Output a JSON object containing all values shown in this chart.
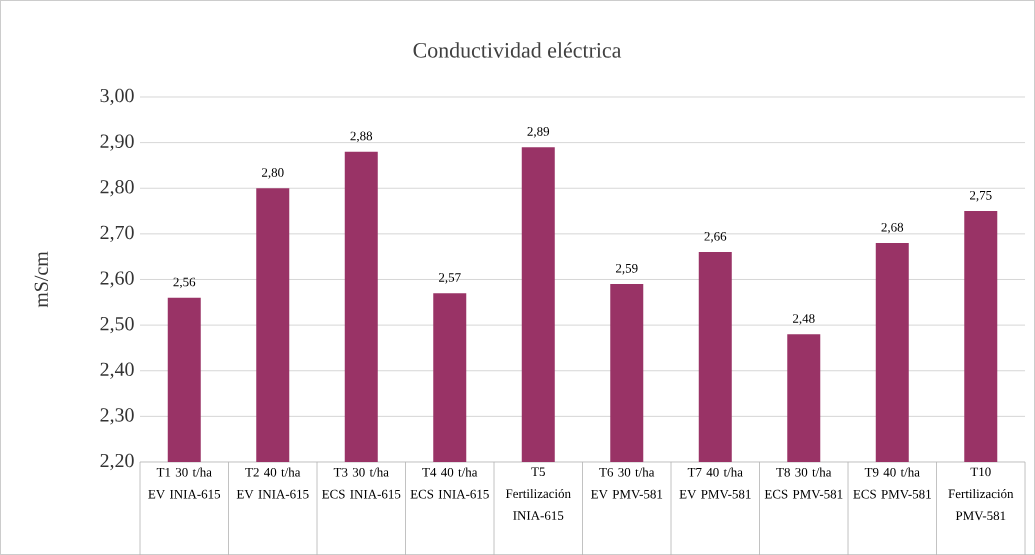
{
  "chart_data": {
    "type": "bar",
    "title": "Conductividad eléctrica",
    "ylabel": "mS/cm",
    "categories": [
      "T1 30 t/ha EV INIA-615",
      "T2 40 t/ha EV INIA-615",
      "T3 30 t/ha ECS INIA-615",
      "T4 40 t/ha ECS INIA-615",
      "T5 Fertilización INIA-615",
      "T6 30 t/ha EV PMV-581",
      "T7 40 t/ha EV PMV-581",
      "T8 30 t/ha ECS PMV-581",
      "T9 40 t/ha ECS PMV-581",
      "T10 Fertilización PMV-581"
    ],
    "values": [
      2.56,
      2.8,
      2.88,
      2.57,
      2.89,
      2.59,
      2.66,
      2.48,
      2.68,
      2.75
    ],
    "value_labels": [
      "2,56",
      "2,80",
      "2,88",
      "2,57",
      "2,89",
      "2,59",
      "2,66",
      "2,48",
      "2,68",
      "2,75"
    ],
    "color": "#993366",
    "ylim": [
      2.2,
      3.0
    ],
    "yticks": [
      {
        "value": 2.2,
        "label": "2,20"
      },
      {
        "value": 2.3,
        "label": "2,30"
      },
      {
        "value": 2.4,
        "label": "2,40"
      },
      {
        "value": 2.5,
        "label": "2,50"
      },
      {
        "value": 2.6,
        "label": "2,60"
      },
      {
        "value": 2.7,
        "label": "2,70"
      },
      {
        "value": 2.8,
        "label": "2,80"
      },
      {
        "value": 2.9,
        "label": "2,90"
      },
      {
        "value": 3.0,
        "label": "3,00"
      }
    ],
    "grid": "y"
  }
}
